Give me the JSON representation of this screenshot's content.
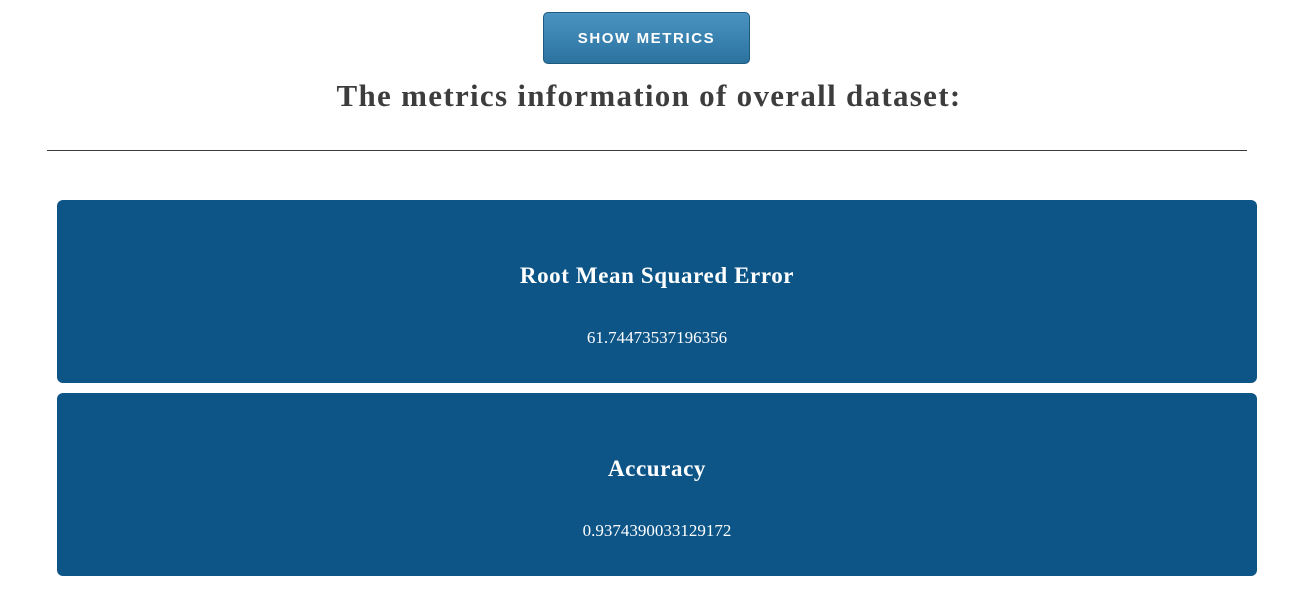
{
  "toolbar": {
    "show_metrics_label": "SHOW METRICS"
  },
  "heading": "The metrics information of overall dataset:",
  "metrics": [
    {
      "title": "Root Mean Squared Error",
      "value": "61.74473537196356"
    },
    {
      "title": "Accuracy",
      "value": "0.9374390033129172"
    }
  ],
  "colors": {
    "card_background": "#0d5587",
    "button_background": "#3883b2",
    "heading_text": "#3d3d3d"
  }
}
